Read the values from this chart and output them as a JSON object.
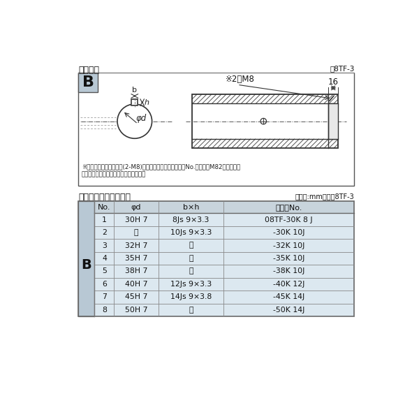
{
  "title_top": "軸穴形状",
  "figure_label": "図8TF-3",
  "note_line1": "※セットボルト用タップ(2-M8)が必要な場合は右記コードNo.の末尾にM82を付ける。",
  "note_line2": "（セットボルトは付属されています。）",
  "table_title": "軸穴形状コード一覧表",
  "table_unit": "（単位:mm）　表8TF-3",
  "header": [
    "No.",
    "φd",
    "b×h",
    "コードNo."
  ],
  "rows": [
    [
      "1",
      "30H 7",
      "8Js 9×3.3",
      "08TF-30K 8 J"
    ],
    [
      "2",
      "〃",
      "10Js 9×3.3",
      "-30K 10J"
    ],
    [
      "3",
      "32H 7",
      "〃",
      "-32K 10J"
    ],
    [
      "4",
      "35H 7",
      "〃",
      "-35K 10J"
    ],
    [
      "5",
      "38H 7",
      "〃",
      "-38K 10J"
    ],
    [
      "6",
      "40H 7",
      "12Js 9×3.3",
      "-40K 12J"
    ],
    [
      "7",
      "45H 7",
      "14Js 9×3.8",
      "-45K 14J"
    ],
    [
      "8",
      "50H 7",
      "〃",
      "-50K 14J"
    ]
  ],
  "bg_color": "#ffffff",
  "table_header_bg": "#c8d4dc",
  "table_row_bg": "#dce8f0",
  "table_border": "#888888",
  "b_label_bg": "#b8c8d4",
  "diagram_box_bg": "#ffffff",
  "diagram_border": "#888888"
}
